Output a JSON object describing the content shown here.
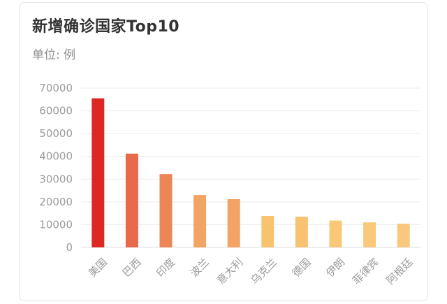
{
  "chart_title": "新增确诊国家Top10",
  "unit_label": "单位: 例",
  "chart_data": {
    "type": "bar",
    "title": "新增确诊国家Top10",
    "subtitle": "单位: 例",
    "categories": [
      "美国",
      "巴西",
      "印度",
      "波兰",
      "意大利",
      "乌克兰",
      "德国",
      "伊朗",
      "菲律宾",
      "阿根廷"
    ],
    "values": [
      65500,
      41200,
      32200,
      23000,
      21200,
      13800,
      13500,
      11800,
      11000,
      10400
    ],
    "ylim": [
      0,
      70000
    ],
    "yticks": [
      0,
      10000,
      20000,
      30000,
      40000,
      50000,
      60000,
      70000
    ],
    "grid": true,
    "colors": [
      "#dd2723",
      "#e8694b",
      "#ed8656",
      "#f2a462",
      "#f3a464",
      "#f7c36f",
      "#f7c372",
      "#f8c878",
      "#f9c87b",
      "#fac87c"
    ]
  }
}
